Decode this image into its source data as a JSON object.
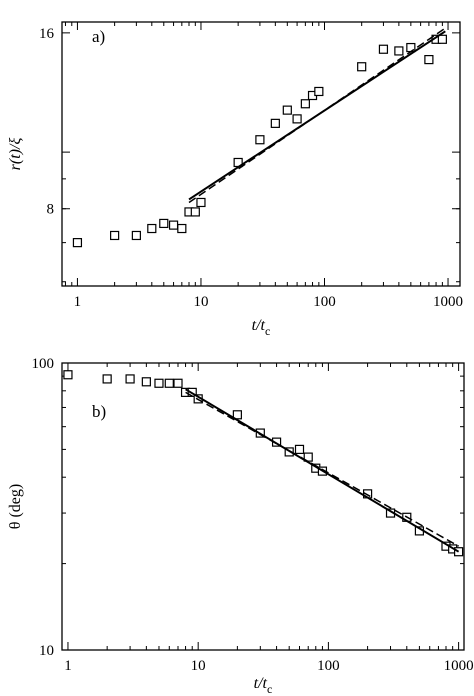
{
  "chart_data": [
    {
      "type": "scatter",
      "panel_label": "a)",
      "xlabel": {
        "main": "t/t",
        "sub": "c"
      },
      "ylabel": "r(t)/ξ",
      "x_scale": "log",
      "y_scale": "log",
      "xlim": [
        0.75,
        1250
      ],
      "ylim": [
        5.9,
        16.7
      ],
      "x_ticks": [
        {
          "value": 1,
          "label": "1"
        },
        {
          "value": 10,
          "label": "10"
        },
        {
          "value": 100,
          "label": "100"
        },
        {
          "value": 1000,
          "label": "1000"
        }
      ],
      "y_ticks": [
        {
          "value": 8,
          "label": "8"
        },
        {
          "value": 16,
          "label": "16"
        }
      ],
      "grid": false,
      "series": [
        {
          "marker": "square",
          "x": [
            1,
            2,
            3,
            4,
            5,
            6,
            7,
            8,
            9,
            10,
            20,
            30,
            40,
            50,
            60,
            70,
            80,
            90,
            200,
            300,
            400,
            500,
            700,
            800,
            900
          ],
          "y": [
            7.0,
            7.2,
            7.2,
            7.4,
            7.55,
            7.5,
            7.4,
            7.9,
            7.9,
            8.2,
            9.6,
            10.5,
            11.2,
            11.8,
            11.4,
            12.1,
            12.5,
            12.7,
            14.0,
            15.0,
            14.9,
            15.1,
            14.4,
            15.6,
            15.6
          ]
        },
        {
          "style": "solid-line",
          "x": [
            8,
            950
          ],
          "y": [
            8.3,
            16.1
          ]
        },
        {
          "style": "dashed-line",
          "x": [
            8,
            950
          ],
          "y": [
            8.2,
            16.3
          ]
        }
      ]
    },
    {
      "type": "scatter",
      "panel_label": "b)",
      "xlabel": {
        "main": "t/t",
        "sub": "c"
      },
      "ylabel": "θ (deg)",
      "x_scale": "log",
      "y_scale": "log",
      "xlim": [
        0.9,
        1100
      ],
      "ylim": [
        10,
        100
      ],
      "x_ticks": [
        {
          "value": 1,
          "label": "1"
        },
        {
          "value": 10,
          "label": "10"
        },
        {
          "value": 100,
          "label": "100"
        },
        {
          "value": 1000,
          "label": "1000"
        }
      ],
      "y_ticks": [
        {
          "value": 10,
          "label": "10"
        },
        {
          "value": 100,
          "label": "100"
        }
      ],
      "grid": false,
      "series": [
        {
          "marker": "square",
          "x": [
            1,
            2,
            3,
            4,
            5,
            6,
            7,
            8,
            9,
            10,
            20,
            30,
            40,
            50,
            60,
            70,
            80,
            90,
            200,
            300,
            400,
            500,
            800,
            900,
            1000
          ],
          "y": [
            91,
            88,
            88,
            86,
            85,
            85,
            85,
            79,
            79,
            75,
            66,
            57,
            53,
            49,
            50,
            47,
            43,
            42,
            35,
            30,
            29,
            26,
            23,
            22.5,
            22
          ]
        },
        {
          "style": "solid-line",
          "x": [
            8,
            1000
          ],
          "y": [
            81,
            22
          ]
        },
        {
          "style": "dashed-line",
          "x": [
            8,
            1000
          ],
          "y": [
            79,
            23
          ]
        }
      ]
    }
  ]
}
